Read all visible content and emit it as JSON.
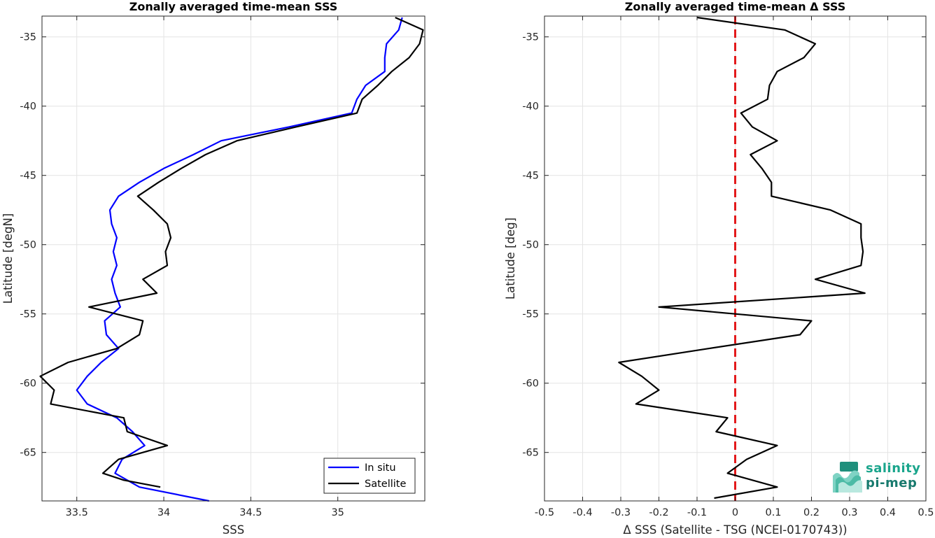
{
  "chart_data": [
    {
      "type": "line",
      "title": "Zonally averaged time-mean SSS",
      "xlabel": "SSS",
      "ylabel": "Latitude [degN]",
      "xlim": [
        33.3,
        35.5
      ],
      "ylim": [
        -68.5,
        -33.5
      ],
      "xticks": [
        "33.5",
        "34",
        "34.5",
        "35"
      ],
      "yticks": [
        "-35",
        "-40",
        "-45",
        "-50",
        "-55",
        "-60",
        "-65"
      ],
      "grid": true,
      "legend": "bottom-right",
      "series": [
        {
          "name": "In situ",
          "color": "#0000ff",
          "points": [
            [
              35.37,
              -33.6
            ],
            [
              35.35,
              -34.5
            ],
            [
              35.28,
              -35.5
            ],
            [
              35.27,
              -36.5
            ],
            [
              35.27,
              -37.5
            ],
            [
              35.16,
              -38.5
            ],
            [
              35.11,
              -39.5
            ],
            [
              35.08,
              -40.5
            ],
            [
              34.72,
              -41.5
            ],
            [
              34.33,
              -42.5
            ],
            [
              34.17,
              -43.5
            ],
            [
              34.0,
              -44.5
            ],
            [
              33.86,
              -45.5
            ],
            [
              33.74,
              -46.5
            ],
            [
              33.69,
              -47.5
            ],
            [
              33.7,
              -48.5
            ],
            [
              33.73,
              -49.5
            ],
            [
              33.71,
              -50.5
            ],
            [
              33.73,
              -51.5
            ],
            [
              33.7,
              -52.5
            ],
            [
              33.72,
              -53.5
            ],
            [
              33.75,
              -54.5
            ],
            [
              33.66,
              -55.5
            ],
            [
              33.67,
              -56.5
            ],
            [
              33.74,
              -57.5
            ],
            [
              33.64,
              -58.5
            ],
            [
              33.56,
              -59.5
            ],
            [
              33.5,
              -60.5
            ],
            [
              33.56,
              -61.5
            ],
            [
              33.73,
              -62.5
            ],
            [
              33.82,
              -63.5
            ],
            [
              33.89,
              -64.5
            ],
            [
              33.76,
              -65.5
            ],
            [
              33.72,
              -66.5
            ],
            [
              33.86,
              -67.5
            ],
            [
              34.26,
              -68.5
            ]
          ]
        },
        {
          "name": "Satellite",
          "color": "#000000",
          "points": [
            [
              35.33,
              -33.6
            ],
            [
              35.49,
              -34.5
            ],
            [
              35.47,
              -35.5
            ],
            [
              35.41,
              -36.5
            ],
            [
              35.31,
              -37.5
            ],
            [
              35.23,
              -38.5
            ],
            [
              35.14,
              -39.5
            ],
            [
              35.11,
              -40.5
            ],
            [
              34.76,
              -41.5
            ],
            [
              34.42,
              -42.5
            ],
            [
              34.24,
              -43.5
            ],
            [
              34.1,
              -44.5
            ],
            [
              33.97,
              -45.5
            ],
            [
              33.85,
              -46.5
            ],
            [
              33.94,
              -47.5
            ],
            [
              34.02,
              -48.5
            ],
            [
              34.04,
              -49.5
            ],
            [
              34.01,
              -50.5
            ],
            [
              34.02,
              -51.5
            ],
            [
              33.88,
              -52.5
            ],
            [
              33.96,
              -53.5
            ],
            [
              33.57,
              -54.5
            ],
            [
              33.88,
              -55.5
            ],
            [
              33.86,
              -56.5
            ],
            [
              33.73,
              -57.5
            ],
            [
              33.45,
              -58.5
            ],
            [
              33.29,
              -59.5
            ],
            [
              33.37,
              -60.5
            ],
            [
              33.35,
              -61.5
            ],
            [
              33.77,
              -62.5
            ],
            [
              33.79,
              -63.5
            ],
            [
              34.02,
              -64.5
            ],
            [
              33.74,
              -65.5
            ],
            [
              33.65,
              -66.5
            ],
            [
              33.77,
              -67.0
            ],
            [
              33.98,
              -67.5
            ]
          ]
        }
      ]
    },
    {
      "type": "line",
      "title": "Zonally averaged time-mean Δ SSS",
      "xlabel": "Δ SSS (Satellite - TSG (NCEI-0170743))",
      "ylabel": "Latitude [deg]",
      "xlim": [
        -0.5,
        0.5
      ],
      "ylim": [
        -68.5,
        -33.5
      ],
      "xticks": [
        "-0.5",
        "-0.4",
        "-0.3",
        "-0.2",
        "-0.1",
        "0",
        "0.1",
        "0.2",
        "0.3",
        "0.4",
        "0.5"
      ],
      "yticks": [
        "-35",
        "-40",
        "-45",
        "-50",
        "-55",
        "-60",
        "-65"
      ],
      "grid": true,
      "reference_line": {
        "x": 0,
        "color": "#e31a1c",
        "style": "dashed"
      },
      "series": [
        {
          "color": "#000000",
          "points": [
            [
              -0.1,
              -33.6
            ],
            [
              0.13,
              -34.5
            ],
            [
              0.21,
              -35.5
            ],
            [
              0.18,
              -36.5
            ],
            [
              0.11,
              -37.5
            ],
            [
              0.09,
              -38.5
            ],
            [
              0.085,
              -39.5
            ],
            [
              0.015,
              -40.5
            ],
            [
              0.045,
              -41.5
            ],
            [
              0.11,
              -42.5
            ],
            [
              0.04,
              -43.5
            ],
            [
              0.07,
              -44.5
            ],
            [
              0.095,
              -45.5
            ],
            [
              0.095,
              -46.5
            ],
            [
              0.25,
              -47.5
            ],
            [
              0.33,
              -48.5
            ],
            [
              0.33,
              -49.5
            ],
            [
              0.335,
              -50.5
            ],
            [
              0.33,
              -51.5
            ],
            [
              0.21,
              -52.5
            ],
            [
              0.34,
              -53.5
            ],
            [
              -0.2,
              -54.5
            ],
            [
              0.2,
              -55.5
            ],
            [
              0.17,
              -56.5
            ],
            [
              -0.07,
              -57.5
            ],
            [
              -0.305,
              -58.5
            ],
            [
              -0.245,
              -59.5
            ],
            [
              -0.2,
              -60.5
            ],
            [
              -0.26,
              -61.5
            ],
            [
              -0.02,
              -62.5
            ],
            [
              -0.05,
              -63.5
            ],
            [
              0.11,
              -64.5
            ],
            [
              0.03,
              -65.5
            ],
            [
              -0.02,
              -66.5
            ],
            [
              0.11,
              -67.5
            ],
            [
              -0.055,
              -68.3
            ]
          ]
        }
      ]
    }
  ],
  "legend": {
    "items": [
      {
        "label": "In situ",
        "color": "#0000ff"
      },
      {
        "label": "Satellite",
        "color": "#000000"
      }
    ]
  },
  "logo": {
    "word1": "salinity",
    "word2": "pi-mep"
  }
}
